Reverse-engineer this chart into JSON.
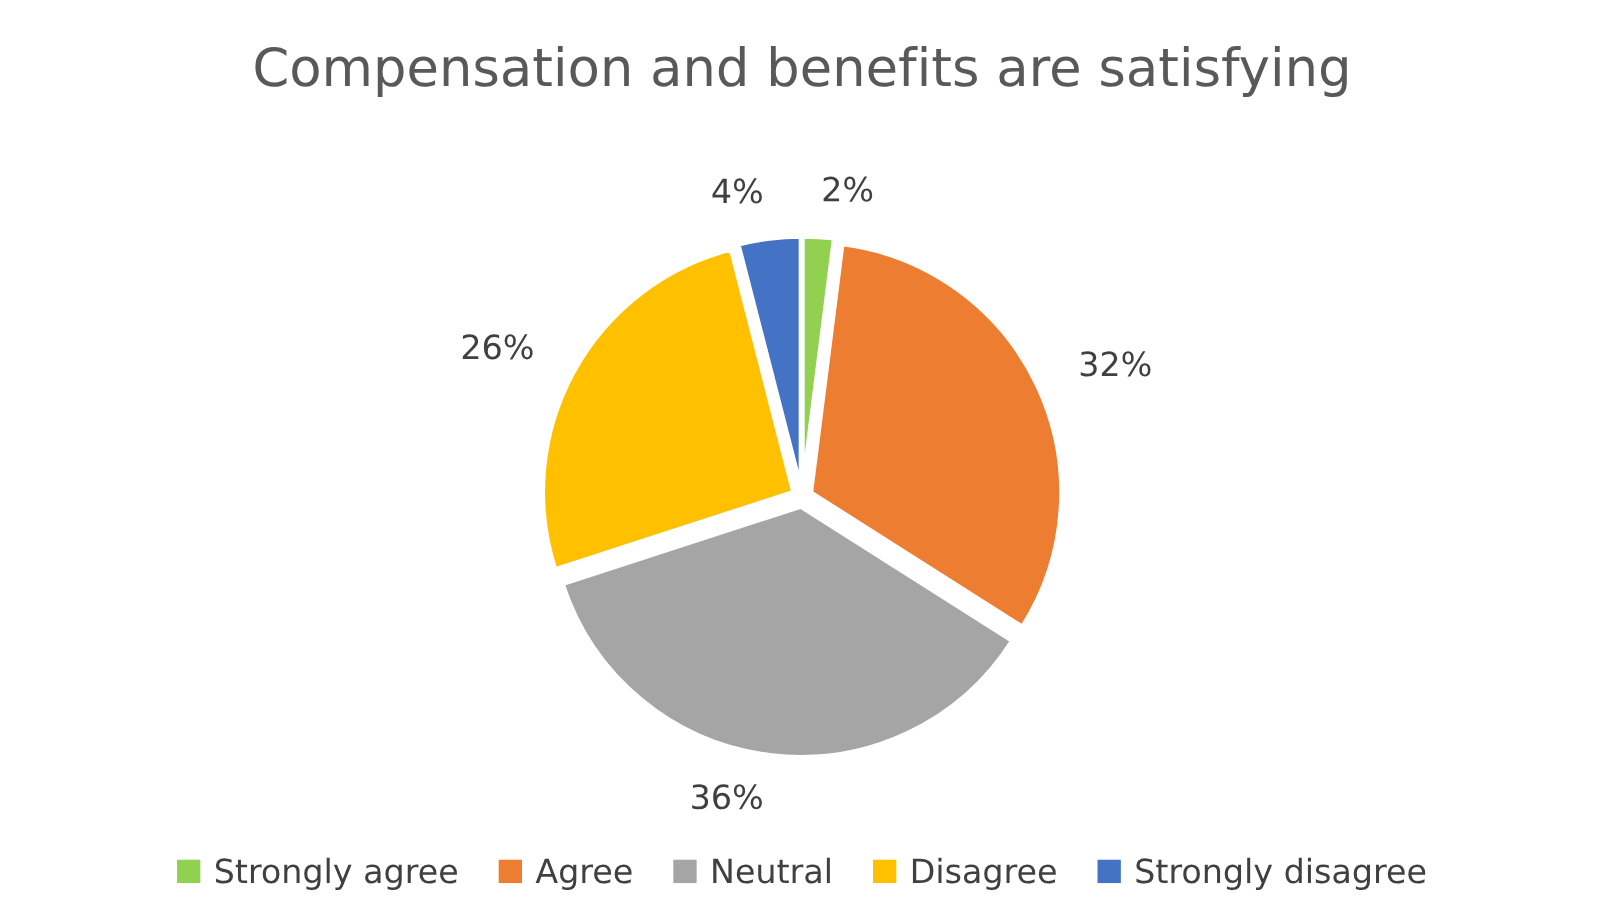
{
  "chart_data": {
    "type": "pie",
    "title": "Compensation and benefits are satisfying",
    "categories": [
      "Strongly agree",
      "Agree",
      "Neutral",
      "Disagree",
      "Strongly disagree"
    ],
    "values": [
      2,
      32,
      36,
      26,
      4
    ],
    "colors": [
      "#92d050",
      "#ed7d31",
      "#a5a5a5",
      "#ffc000",
      "#4472c4"
    ],
    "value_labels": [
      "2%",
      "32%",
      "36%",
      "26%",
      "4%"
    ],
    "legend": "bottom"
  }
}
